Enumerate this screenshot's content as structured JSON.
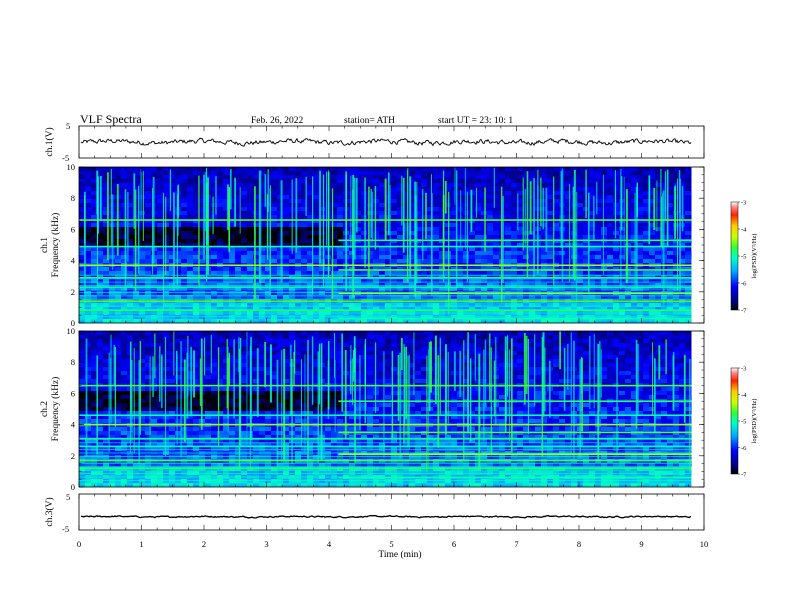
{
  "header": {
    "title": "VLF  Spectra",
    "date": "Feb. 26, 2022",
    "station": "station= ATH",
    "start_ut": "start  UT  =    23: 10: 1"
  },
  "chart_data": [
    {
      "type": "line",
      "name": "ch1-waveform",
      "ylabel": "ch.1(V)",
      "ylim": [
        -5,
        5
      ],
      "yticks": [
        "5",
        "-5"
      ],
      "xlim": [
        0,
        10
      ],
      "baseline": 0,
      "noise_amplitude": 0.6,
      "extent_min": 9.8,
      "color": "#000000"
    },
    {
      "type": "heatmap",
      "name": "ch1-spectrogram",
      "ylabel": "ch.1\nFrequency (kHz)",
      "ylim": [
        0,
        10
      ],
      "yticks": [
        "0",
        "2",
        "4",
        "6",
        "8",
        "10"
      ],
      "xlim": [
        0,
        10
      ],
      "extent_min": 9.8,
      "change_min": 4.15,
      "bright_lines_khz": [
        0.3,
        0.8,
        1.4,
        1.9,
        2.3,
        2.9,
        3.4,
        3.7,
        4.9,
        5.3,
        6.6
      ],
      "colorbar": {
        "label": "log(PSD)(V²/Hz)",
        "range": [
          -7,
          -3
        ],
        "ticks": [
          "-3",
          "-4",
          "-5",
          "-6",
          "-7"
        ]
      }
    },
    {
      "type": "heatmap",
      "name": "ch2-spectrogram",
      "ylabel": "ch.2\nFrequency (kHz)",
      "ylim": [
        0,
        10
      ],
      "yticks": [
        "0",
        "2",
        "4",
        "6",
        "8",
        "10"
      ],
      "xlim": [
        0,
        10
      ],
      "extent_min": 9.8,
      "change_min": 4.15,
      "bright_lines_khz": [
        0.6,
        1.2,
        1.7,
        2.1,
        2.6,
        3.1,
        3.5,
        4.0,
        4.6,
        5.5,
        6.5
      ],
      "colorbar": {
        "label": "log(PSD)(V²/Hz)",
        "range": [
          -7,
          -3
        ],
        "ticks": [
          "-3",
          "-4",
          "-5",
          "-6",
          "-7"
        ]
      }
    },
    {
      "type": "line",
      "name": "ch3-waveform",
      "ylabel": "ch.3(V)",
      "ylim": [
        -5,
        5
      ],
      "yticks": [
        "5",
        "-5"
      ],
      "xlim": [
        0,
        10
      ],
      "baseline": -1.3,
      "noise_amplitude": 0.15,
      "extent_min": 9.8,
      "color": "#000000"
    }
  ],
  "xaxis": {
    "label": "Time  (min)",
    "ticks": [
      "0",
      "1",
      "2",
      "3",
      "4",
      "5",
      "6",
      "7",
      "8",
      "9",
      "10"
    ]
  }
}
